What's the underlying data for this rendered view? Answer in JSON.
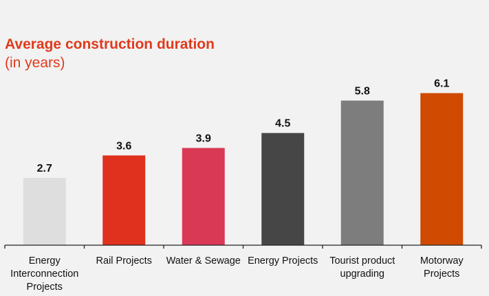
{
  "chart_data": {
    "type": "bar",
    "title": "Average construction duration",
    "subtitle": "(in years)",
    "xlabel": "",
    "ylabel": "",
    "categories": [
      "Energy Interconnection Projects",
      "Rail Projects",
      "Water & Sewage",
      "Energy Projects",
      "Tourist product upgrading",
      "Motorway Projects"
    ],
    "values": [
      2.7,
      3.6,
      3.9,
      4.5,
      5.8,
      6.1
    ],
    "data_labels": [
      "2.7",
      "3.6",
      "3.9",
      "4.5",
      "5.8",
      "6.1"
    ],
    "colors": [
      "#dedede",
      "#e0301e",
      "#d93954",
      "#464646",
      "#7d7d7d",
      "#d04a02"
    ],
    "ylim": [
      0,
      6.5
    ],
    "grid": false,
    "legend": "none"
  }
}
